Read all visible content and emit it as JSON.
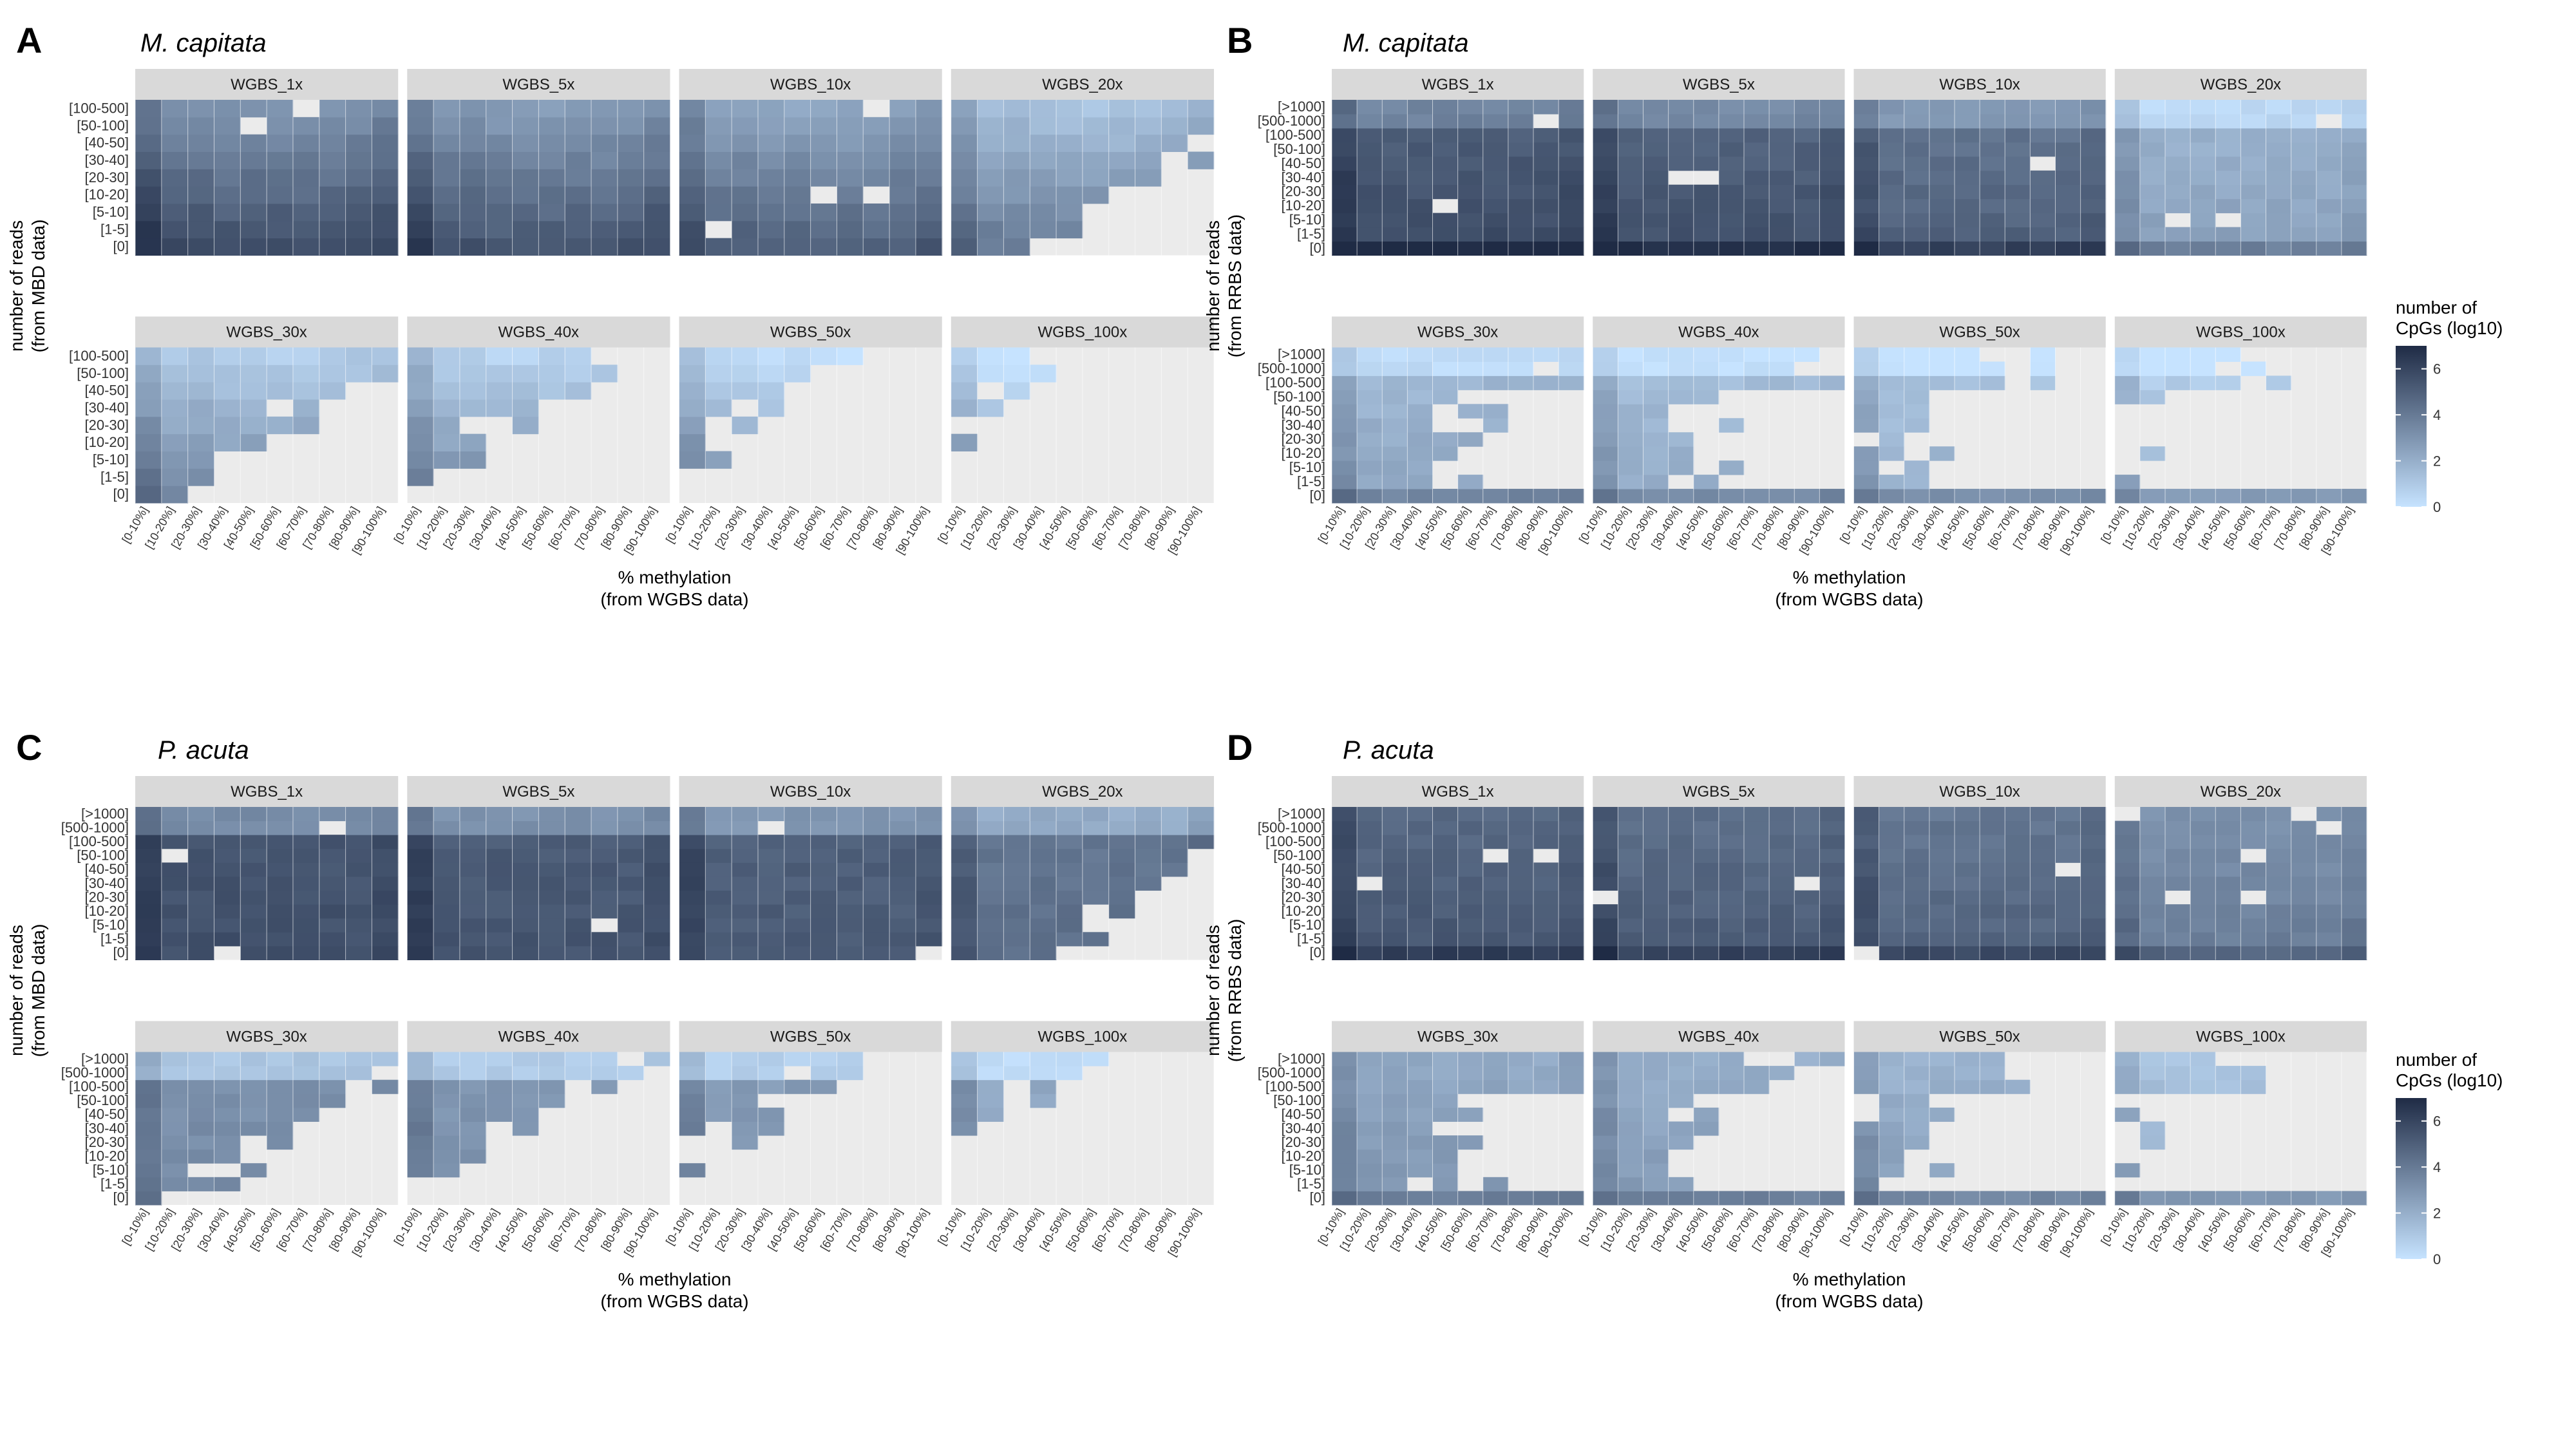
{
  "colors": {
    "low": "#c6e3ff",
    "high": "#1f2b45",
    "panel_bg": "#ebebeb",
    "strip_bg": "#d9d9d9",
    "grid": "#ffffff"
  },
  "chart_data": [
    {
      "type": "heatmap",
      "label": "A",
      "title": "M. capitata",
      "ylabel": "number of reads\n(from MBD data)",
      "xlabel": "% methylation\n(from WGBS data)",
      "facets": [
        "WGBS_1x",
        "WGBS_5x",
        "WGBS_10x",
        "WGBS_20x",
        "WGBS_30x",
        "WGBS_40x",
        "WGBS_50x",
        "WGBS_100x"
      ],
      "x_categories": [
        "[0-10%]",
        "[10-20%]",
        "[20-30%]",
        "[30-40%]",
        "[40-50%]",
        "[50-60%]",
        "[60-70%]",
        "[70-80%]",
        "[80-90%]",
        "[90-100%]"
      ],
      "y_categories": [
        "[0]",
        "[1-5]",
        "[5-10]",
        "[10-20]",
        "[20-30]",
        "[30-40]",
        "[40-50]",
        "[50-100]",
        "[100-500]"
      ],
      "fill_range": [
        0,
        7
      ]
    },
    {
      "type": "heatmap",
      "label": "B",
      "title": "M. capitata",
      "ylabel": "number of reads\n(from RRBS data)",
      "xlabel": "% methylation\n(from WGBS data)",
      "facets": [
        "WGBS_1x",
        "WGBS_5x",
        "WGBS_10x",
        "WGBS_20x",
        "WGBS_30x",
        "WGBS_40x",
        "WGBS_50x",
        "WGBS_100x"
      ],
      "x_categories": [
        "[0-10%]",
        "[10-20%]",
        "[20-30%]",
        "[30-40%]",
        "[40-50%]",
        "[50-60%]",
        "[60-70%]",
        "[70-80%]",
        "[80-90%]",
        "[90-100%]"
      ],
      "y_categories": [
        "[0]",
        "[1-5]",
        "[5-10]",
        "[10-20]",
        "[20-30]",
        "[30-40]",
        "[40-50]",
        "[50-100]",
        "[100-500]",
        "[500-1000]",
        "[>1000]"
      ],
      "fill_range": [
        0,
        7
      ],
      "legend": {
        "title": "number of\nCpGs (log10)",
        "ticks": [
          "0",
          "2",
          "4",
          "6"
        ],
        "placement": "right"
      }
    },
    {
      "type": "heatmap",
      "label": "C",
      "title": "P. acuta",
      "ylabel": "number of reads\n(from MBD data)",
      "xlabel": "% methylation\n(from WGBS data)",
      "facets": [
        "WGBS_1x",
        "WGBS_5x",
        "WGBS_10x",
        "WGBS_20x",
        "WGBS_30x",
        "WGBS_40x",
        "WGBS_50x",
        "WGBS_100x"
      ],
      "x_categories": [
        "[0-10%]",
        "[10-20%]",
        "[20-30%]",
        "[30-40%]",
        "[40-50%]",
        "[50-60%]",
        "[60-70%]",
        "[70-80%]",
        "[80-90%]",
        "[90-100%]"
      ],
      "y_categories": [
        "[0]",
        "[1-5]",
        "[5-10]",
        "[10-20]",
        "[20-30]",
        "[30-40]",
        "[40-50]",
        "[50-100]",
        "[100-500]",
        "[500-1000]",
        "[>1000]"
      ],
      "fill_range": [
        0,
        7
      ]
    },
    {
      "type": "heatmap",
      "label": "D",
      "title": "P. acuta",
      "ylabel": "number of reads\n(from RRBS data)",
      "xlabel": "% methylation\n(from WGBS data)",
      "facets": [
        "WGBS_1x",
        "WGBS_5x",
        "WGBS_10x",
        "WGBS_20x",
        "WGBS_30x",
        "WGBS_40x",
        "WGBS_50x",
        "WGBS_100x"
      ],
      "x_categories": [
        "[0-10%]",
        "[10-20%]",
        "[20-30%]",
        "[30-40%]",
        "[40-50%]",
        "[50-60%]",
        "[60-70%]",
        "[70-80%]",
        "[80-90%]",
        "[90-100%]"
      ],
      "y_categories": [
        "[0]",
        "[1-5]",
        "[5-10]",
        "[10-20]",
        "[20-30]",
        "[30-40]",
        "[40-50]",
        "[50-100]",
        "[100-500]",
        "[500-1000]",
        "[>1000]"
      ],
      "fill_range": [
        0,
        7
      ],
      "legend": {
        "title": "number of\nCpGs (log10)",
        "ticks": [
          "0",
          "2",
          "4",
          "6"
        ],
        "placement": "right"
      }
    }
  ]
}
